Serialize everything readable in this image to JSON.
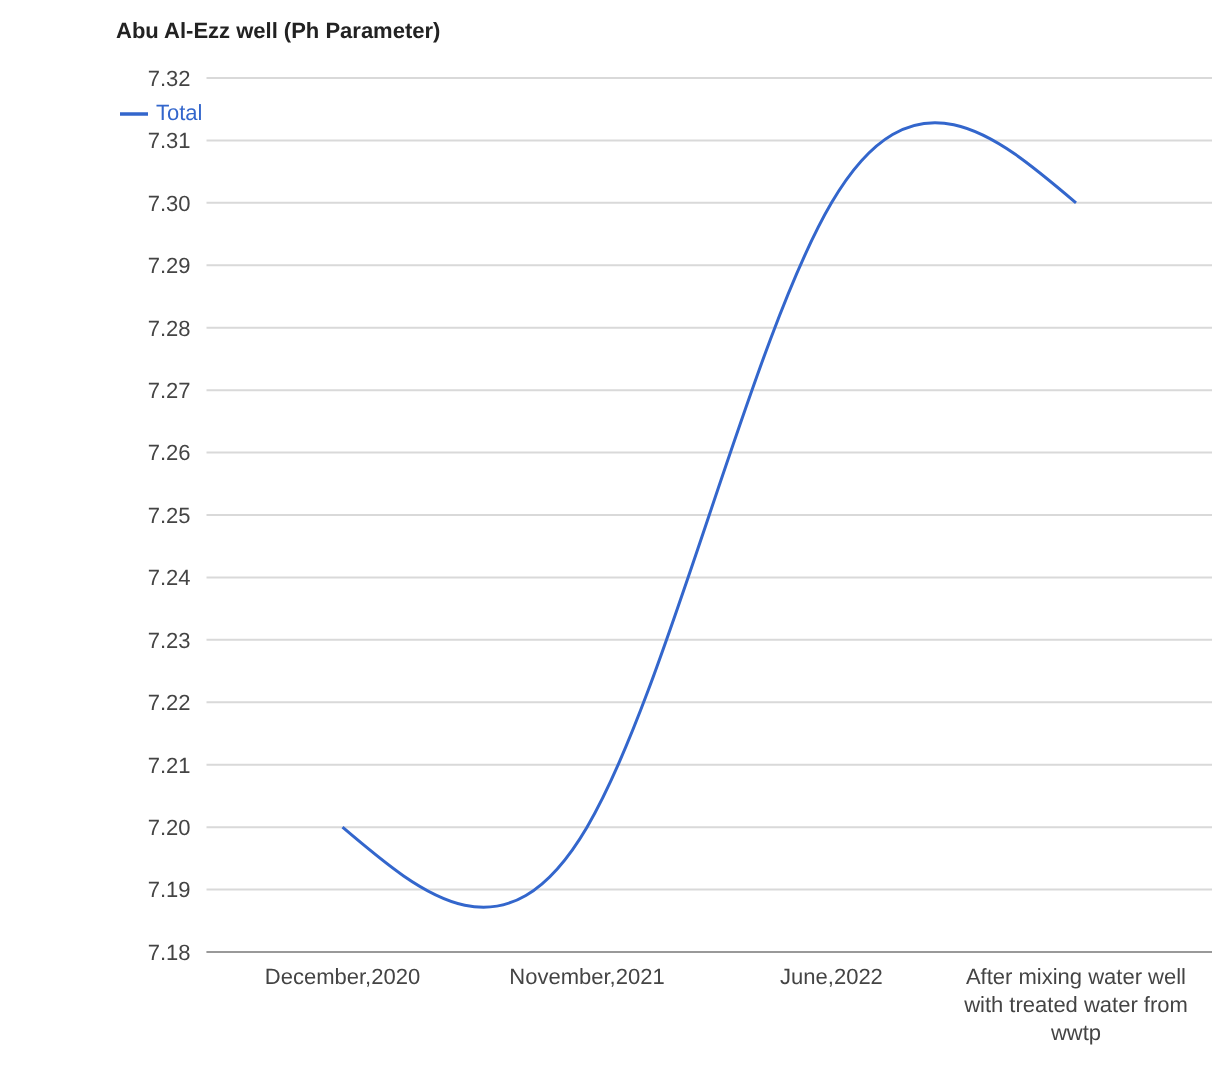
{
  "chart_data": {
    "type": "line",
    "title": "Abu Al-Ezz well (Ph Parameter)",
    "categories": [
      "December,2020",
      "November,2021",
      "June,2022",
      "After mixing water well with treated water from wwtp"
    ],
    "series": [
      {
        "name": "Total",
        "color": "#3366cc",
        "values": [
          7.2,
          7.2,
          7.3,
          7.3
        ]
      }
    ],
    "ylim": [
      7.18,
      7.32
    ],
    "yticks": [
      7.18,
      7.19,
      {
        "value": 7.2,
        "label": "7.20"
      },
      7.21,
      7.22,
      7.23,
      7.24,
      7.25,
      7.26,
      7.27,
      7.28,
      7.29,
      {
        "value": 7.3,
        "label": "7.30"
      },
      7.31,
      7.32
    ],
    "grid": "y",
    "legend": "top left",
    "marker": "none"
  }
}
